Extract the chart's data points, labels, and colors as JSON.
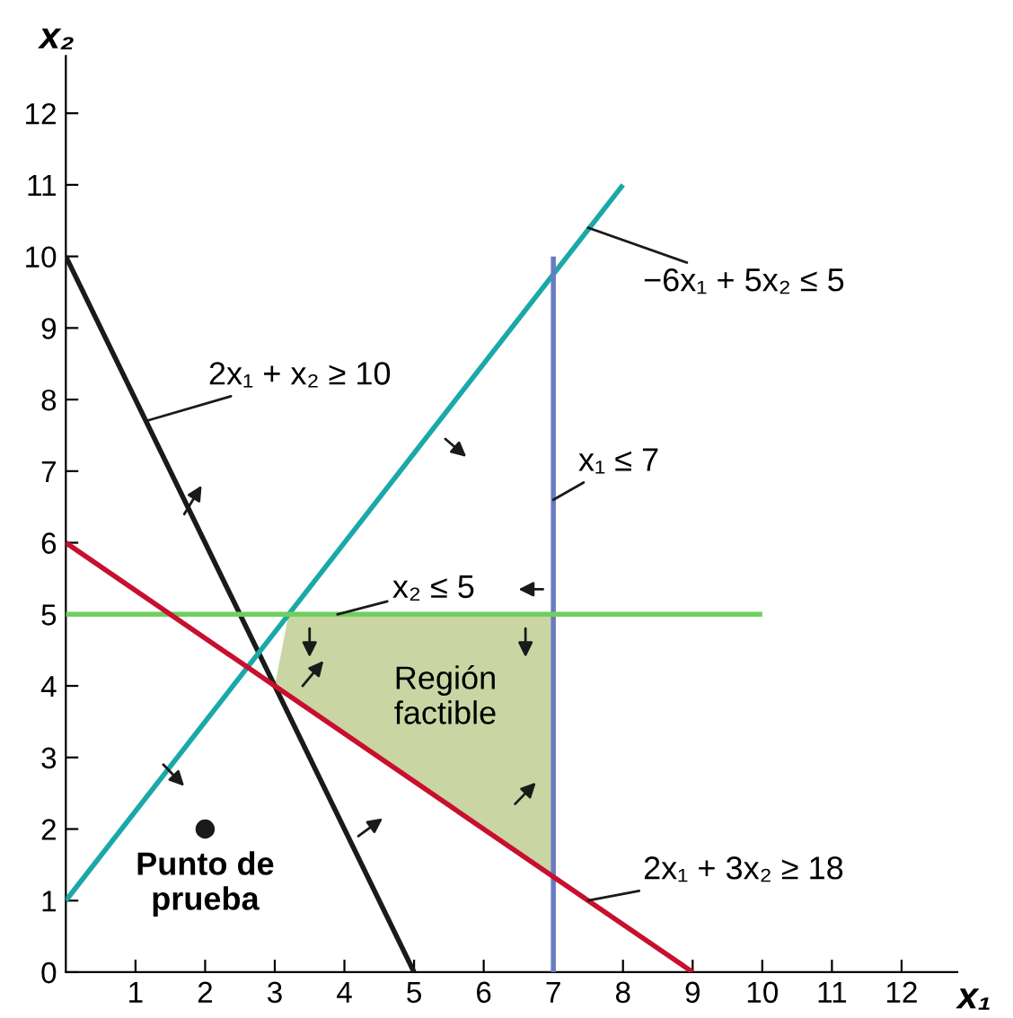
{
  "chart_data": {
    "type": "line",
    "xlabel": "x₁",
    "ylabel": "x₂",
    "xlim": [
      0,
      12.8
    ],
    "ylim": [
      0,
      12.8
    ],
    "xticks": [
      1,
      2,
      3,
      4,
      5,
      6,
      7,
      8,
      9,
      10,
      11,
      12
    ],
    "yticks": [
      0,
      1,
      2,
      3,
      4,
      5,
      6,
      7,
      8,
      9,
      10,
      11,
      12
    ],
    "grid": false,
    "legend": false,
    "marker": "none",
    "line_style": "solid",
    "series": [
      {
        "type": "area",
        "color": "#c9d6a3",
        "x": [
          3,
          3.2,
          7,
          7,
          3
        ],
        "values": [
          4,
          5,
          5,
          1.33,
          4
        ]
      },
      {
        "color": "#1a1a1a",
        "x": [
          0,
          5
        ],
        "values": [
          10,
          0
        ]
      },
      {
        "color": "#1aa8a8",
        "x": [
          0,
          8
        ],
        "values": [
          1,
          11
        ]
      },
      {
        "color": "#6a7bc4",
        "x": [
          7,
          7
        ],
        "values": [
          0,
          10
        ]
      },
      {
        "color": "#6fcf5f",
        "x": [
          0,
          10
        ],
        "values": [
          5,
          5
        ]
      },
      {
        "color": "#c8102e",
        "x": [
          0,
          9
        ],
        "values": [
          6,
          0
        ]
      },
      {
        "type": "scatter",
        "color": "#1a1a1a",
        "x": [
          2
        ],
        "values": [
          2
        ],
        "marker": "circle"
      }
    ],
    "annotations": [
      {
        "text": "2x₁ + x₂ ≥ 10",
        "x": 1.15,
        "y": 7.7
      },
      {
        "text": "−6x₁ + 5x₂ ≤ 5",
        "x": 7.5,
        "y": 10.4
      },
      {
        "text": "x₁ ≤ 7",
        "x": 7,
        "y": 6.6
      },
      {
        "text": "x₂ ≤ 5",
        "x": 3.9,
        "y": 5
      },
      {
        "text": "2x₁ + 3x₂ ≥ 18",
        "x": 7.5,
        "y": 1
      },
      "Región\nfactible",
      {
        "text": "Punto de\nprueba",
        "x": 2,
        "y": 2
      }
    ]
  }
}
